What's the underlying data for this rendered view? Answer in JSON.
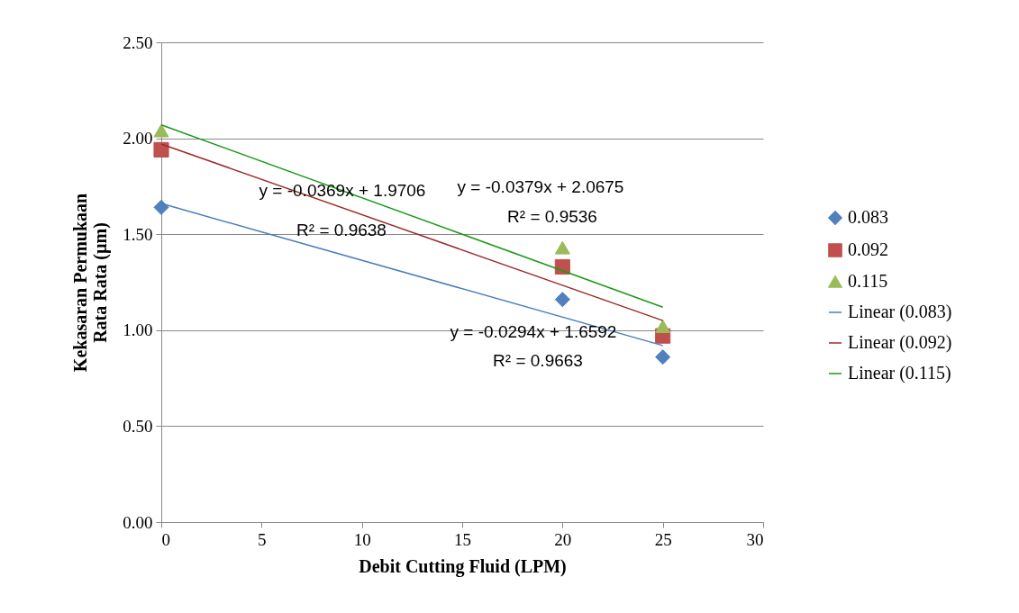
{
  "chart_data": {
    "type": "scatter",
    "xlabel": "Debit Cutting Fluid (LPM)",
    "ylabel": "Kekasaran Permukaan Rata Rata (µm)",
    "xlim": [
      0,
      30
    ],
    "xticks": [
      0,
      5,
      10,
      15,
      20,
      25,
      30
    ],
    "ylim": [
      0,
      2.5
    ],
    "yticks": [
      {
        "value": 0,
        "label": "0.00"
      },
      {
        "value": 0.5,
        "label": "0.50"
      },
      {
        "value": 1,
        "label": "1.00"
      },
      {
        "value": 1.5,
        "label": "1.50"
      },
      {
        "value": 2,
        "label": "2.00"
      },
      {
        "value": 2.5,
        "label": "2.50"
      }
    ],
    "grid": "y",
    "legend": "right",
    "series": [
      {
        "name": "0.083",
        "marker": "diamond",
        "color": "#4f81bd",
        "x": [
          0,
          20,
          25
        ],
        "values": [
          1.64,
          1.16,
          0.86
        ]
      },
      {
        "name": "0.092",
        "marker": "square",
        "color": "#c0504d",
        "x": [
          0,
          20,
          25
        ],
        "values": [
          1.94,
          1.33,
          0.97
        ]
      },
      {
        "name": "0.115",
        "marker": "triangle",
        "color": "#9bbb59",
        "x": [
          0,
          20,
          25
        ],
        "values": [
          2.04,
          1.43,
          1.02
        ]
      },
      {
        "name": "Linear (0.083)",
        "type": "line",
        "line_style": "solid",
        "color": "#4a7ebb",
        "x": [
          0,
          25
        ],
        "values": [
          1.66,
          0.92
        ]
      },
      {
        "name": "Linear (0.092)",
        "type": "line",
        "line_style": "solid",
        "color": "#9c2b2b",
        "x": [
          0,
          25
        ],
        "values": [
          1.97,
          1.05
        ]
      },
      {
        "name": "Linear (0.115)",
        "type": "line",
        "line_style": "solid",
        "color": "#1a9a1a",
        "x": [
          0,
          25
        ],
        "values": [
          2.07,
          1.12
        ]
      }
    ],
    "annotations": [
      "y = -0.0369x + 1.9706",
      "R² = 0.9638",
      "y = -0.0379x + 2.0675",
      "R² = 0.9536",
      "y = -0.0294x + 1.6592",
      "R² = 0.9663"
    ]
  }
}
